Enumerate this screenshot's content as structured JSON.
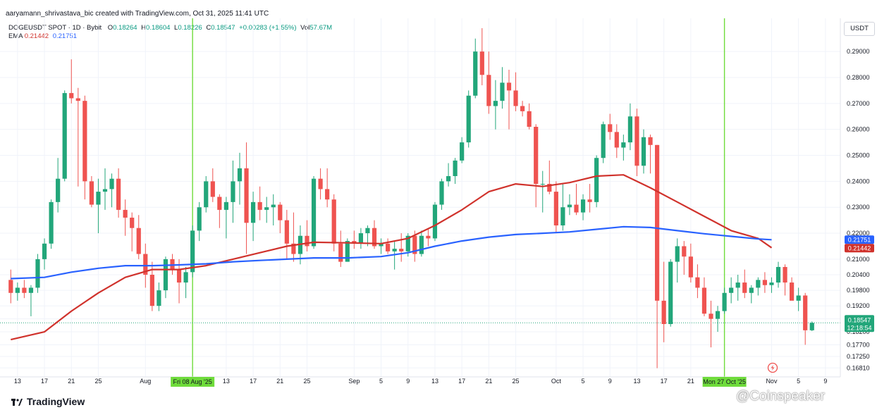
{
  "header": {
    "credit": "aaryamann_shrivastava_bic created with TradingView.com, Oct 31, 2025 11:41 UTC",
    "symbol": "DOGEUSDT SPOT · 1D · Bybit",
    "ohlc": {
      "o_label": "O",
      "o": "0.18264",
      "h_label": "H",
      "h": "0.18604",
      "l_label": "L",
      "l": "0.18226",
      "c_label": "C",
      "c": "0.18547",
      "change": "+0.00283 (+1.55%)",
      "vol_label": "Vol",
      "vol": "57.67M"
    },
    "ema_label": "EMA",
    "ema_fast": "0.21442",
    "ema_slow": "0.21751",
    "currency": "USDT"
  },
  "footer": {
    "brand": "TradingView",
    "watermark": "@Coinspeaker"
  },
  "colors": {
    "up": "#22a67a",
    "down": "#ef5350",
    "ema_red": "#d0322c",
    "ema_blue": "#2962ff",
    "marker": "#6fdc3b",
    "grid": "#f0f3fa"
  },
  "chart_data": {
    "type": "candlestick",
    "title": "DOGEUSDT SPOT · 1D · Bybit",
    "ylim": [
      0.166,
      0.299
    ],
    "y_ticks": [
      "0.29000",
      "0.28000",
      "0.27000",
      "0.26000",
      "0.25000",
      "0.24000",
      "0.23000",
      "0.22000",
      "0.21000",
      "0.20400",
      "0.19800",
      "0.19200",
      "0.18700",
      "0.18200",
      "0.17700",
      "0.17250",
      "0.16810"
    ],
    "x_labels": [
      {
        "i": 1,
        "text": "13"
      },
      {
        "i": 5,
        "text": "17"
      },
      {
        "i": 9,
        "text": "21"
      },
      {
        "i": 13,
        "text": "25"
      },
      {
        "i": 20,
        "text": "Aug"
      },
      {
        "i": 32,
        "text": "13"
      },
      {
        "i": 36,
        "text": "17"
      },
      {
        "i": 40,
        "text": "21"
      },
      {
        "i": 44,
        "text": "25"
      },
      {
        "i": 51,
        "text": "Sep"
      },
      {
        "i": 55,
        "text": "5"
      },
      {
        "i": 59,
        "text": "9"
      },
      {
        "i": 63,
        "text": "13"
      },
      {
        "i": 67,
        "text": "17"
      },
      {
        "i": 71,
        "text": "21"
      },
      {
        "i": 75,
        "text": "25"
      },
      {
        "i": 81,
        "text": "Oct"
      },
      {
        "i": 85,
        "text": "5"
      },
      {
        "i": 89,
        "text": "9"
      },
      {
        "i": 93,
        "text": "13"
      },
      {
        "i": 97,
        "text": "17"
      },
      {
        "i": 101,
        "text": "21"
      },
      {
        "i": 113,
        "text": "Nov"
      },
      {
        "i": 117,
        "text": "5"
      },
      {
        "i": 121,
        "text": "9"
      }
    ],
    "highlighted_dates": [
      {
        "i": 27,
        "text": "Fri 08 Aug '25"
      },
      {
        "i": 106,
        "text": "Mon 27 Oct '25"
      }
    ],
    "candles": [
      [
        0.202,
        0.206,
        0.193,
        0.197
      ],
      [
        0.197,
        0.201,
        0.194,
        0.199
      ],
      [
        0.199,
        0.202,
        0.195,
        0.197
      ],
      [
        0.197,
        0.2,
        0.188,
        0.199
      ],
      [
        0.199,
        0.212,
        0.197,
        0.21
      ],
      [
        0.21,
        0.218,
        0.206,
        0.216
      ],
      [
        0.216,
        0.233,
        0.214,
        0.232
      ],
      [
        0.232,
        0.249,
        0.228,
        0.241
      ],
      [
        0.241,
        0.275,
        0.24,
        0.274
      ],
      [
        0.274,
        0.287,
        0.27,
        0.272
      ],
      [
        0.272,
        0.276,
        0.238,
        0.271
      ],
      [
        0.271,
        0.273,
        0.233,
        0.24
      ],
      [
        0.24,
        0.242,
        0.23,
        0.231
      ],
      [
        0.231,
        0.241,
        0.22,
        0.236
      ],
      [
        0.236,
        0.245,
        0.229,
        0.237
      ],
      [
        0.237,
        0.243,
        0.23,
        0.241
      ],
      [
        0.241,
        0.245,
        0.226,
        0.229
      ],
      [
        0.229,
        0.233,
        0.219,
        0.226
      ],
      [
        0.226,
        0.228,
        0.213,
        0.222
      ],
      [
        0.222,
        0.227,
        0.21,
        0.212
      ],
      [
        0.212,
        0.216,
        0.199,
        0.204
      ],
      [
        0.204,
        0.209,
        0.19,
        0.192
      ],
      [
        0.192,
        0.201,
        0.19,
        0.198
      ],
      [
        0.198,
        0.211,
        0.195,
        0.21
      ],
      [
        0.21,
        0.212,
        0.204,
        0.206
      ],
      [
        0.206,
        0.21,
        0.193,
        0.201
      ],
      [
        0.201,
        0.207,
        0.195,
        0.205
      ],
      [
        0.205,
        0.223,
        0.203,
        0.221
      ],
      [
        0.221,
        0.232,
        0.217,
        0.23
      ],
      [
        0.23,
        0.242,
        0.228,
        0.24
      ],
      [
        0.24,
        0.245,
        0.232,
        0.234
      ],
      [
        0.234,
        0.235,
        0.222,
        0.229
      ],
      [
        0.229,
        0.234,
        0.218,
        0.232
      ],
      [
        0.232,
        0.248,
        0.224,
        0.24
      ],
      [
        0.24,
        0.251,
        0.231,
        0.245
      ],
      [
        0.245,
        0.255,
        0.212,
        0.224
      ],
      [
        0.224,
        0.236,
        0.217,
        0.232
      ],
      [
        0.232,
        0.238,
        0.225,
        0.229
      ],
      [
        0.229,
        0.234,
        0.224,
        0.23
      ],
      [
        0.23,
        0.235,
        0.223,
        0.231
      ],
      [
        0.231,
        0.232,
        0.22,
        0.225
      ],
      [
        0.225,
        0.229,
        0.21,
        0.216
      ],
      [
        0.216,
        0.228,
        0.209,
        0.212
      ],
      [
        0.212,
        0.223,
        0.208,
        0.219
      ],
      [
        0.219,
        0.225,
        0.213,
        0.215
      ],
      [
        0.215,
        0.242,
        0.214,
        0.241
      ],
      [
        0.241,
        0.245,
        0.233,
        0.237
      ],
      [
        0.237,
        0.245,
        0.23,
        0.233
      ],
      [
        0.233,
        0.235,
        0.213,
        0.216
      ],
      [
        0.216,
        0.221,
        0.207,
        0.209
      ],
      [
        0.209,
        0.218,
        0.209,
        0.217
      ],
      [
        0.217,
        0.221,
        0.214,
        0.216
      ],
      [
        0.216,
        0.222,
        0.214,
        0.22
      ],
      [
        0.22,
        0.223,
        0.215,
        0.222
      ],
      [
        0.222,
        0.225,
        0.214,
        0.215
      ],
      [
        0.215,
        0.218,
        0.212,
        0.216
      ],
      [
        0.216,
        0.218,
        0.212,
        0.213
      ],
      [
        0.213,
        0.217,
        0.206,
        0.214
      ],
      [
        0.214,
        0.22,
        0.209,
        0.213
      ],
      [
        0.213,
        0.22,
        0.211,
        0.219
      ],
      [
        0.219,
        0.221,
        0.209,
        0.212
      ],
      [
        0.212,
        0.221,
        0.211,
        0.219
      ],
      [
        0.219,
        0.222,
        0.215,
        0.218
      ],
      [
        0.218,
        0.232,
        0.217,
        0.231
      ],
      [
        0.231,
        0.241,
        0.229,
        0.24
      ],
      [
        0.24,
        0.247,
        0.238,
        0.242
      ],
      [
        0.242,
        0.249,
        0.239,
        0.248
      ],
      [
        0.248,
        0.257,
        0.247,
        0.255
      ],
      [
        0.255,
        0.275,
        0.253,
        0.273
      ],
      [
        0.273,
        0.295,
        0.272,
        0.29
      ],
      [
        0.29,
        0.299,
        0.277,
        0.281
      ],
      [
        0.281,
        0.29,
        0.266,
        0.269
      ],
      [
        0.269,
        0.279,
        0.26,
        0.271
      ],
      [
        0.271,
        0.284,
        0.268,
        0.278
      ],
      [
        0.278,
        0.283,
        0.26,
        0.275
      ],
      [
        0.275,
        0.282,
        0.267,
        0.269
      ],
      [
        0.269,
        0.271,
        0.265,
        0.267
      ],
      [
        0.267,
        0.27,
        0.26,
        0.261
      ],
      [
        0.261,
        0.262,
        0.23,
        0.239
      ],
      [
        0.239,
        0.244,
        0.228,
        0.239
      ],
      [
        0.239,
        0.248,
        0.235,
        0.236
      ],
      [
        0.236,
        0.24,
        0.22,
        0.223
      ],
      [
        0.223,
        0.239,
        0.221,
        0.23
      ],
      [
        0.23,
        0.235,
        0.227,
        0.231
      ],
      [
        0.231,
        0.239,
        0.227,
        0.228
      ],
      [
        0.228,
        0.235,
        0.225,
        0.233
      ],
      [
        0.233,
        0.239,
        0.228,
        0.232
      ],
      [
        0.232,
        0.25,
        0.23,
        0.249
      ],
      [
        0.249,
        0.263,
        0.247,
        0.262
      ],
      [
        0.262,
        0.266,
        0.256,
        0.259
      ],
      [
        0.259,
        0.262,
        0.249,
        0.253
      ],
      [
        0.253,
        0.258,
        0.248,
        0.255
      ],
      [
        0.255,
        0.27,
        0.252,
        0.265
      ],
      [
        0.265,
        0.268,
        0.242,
        0.246
      ],
      [
        0.246,
        0.26,
        0.243,
        0.257
      ],
      [
        0.257,
        0.258,
        0.243,
        0.254
      ],
      [
        0.254,
        0.254,
        0.168,
        0.194
      ],
      [
        0.194,
        0.209,
        0.178,
        0.185
      ],
      [
        0.185,
        0.21,
        0.184,
        0.209
      ],
      [
        0.209,
        0.218,
        0.201,
        0.215
      ],
      [
        0.215,
        0.217,
        0.204,
        0.211
      ],
      [
        0.211,
        0.216,
        0.201,
        0.203
      ],
      [
        0.203,
        0.208,
        0.195,
        0.199
      ],
      [
        0.199,
        0.203,
        0.188,
        0.189
      ],
      [
        0.189,
        0.194,
        0.176,
        0.187
      ],
      [
        0.187,
        0.192,
        0.182,
        0.19
      ],
      [
        0.19,
        0.199,
        0.189,
        0.197
      ],
      [
        0.197,
        0.203,
        0.193,
        0.199
      ],
      [
        0.199,
        0.204,
        0.194,
        0.201
      ],
      [
        0.201,
        0.206,
        0.195,
        0.197
      ],
      [
        0.197,
        0.2,
        0.193,
        0.199
      ],
      [
        0.199,
        0.203,
        0.196,
        0.202
      ],
      [
        0.202,
        0.205,
        0.197,
        0.2
      ],
      [
        0.2,
        0.203,
        0.197,
        0.201
      ],
      [
        0.201,
        0.209,
        0.199,
        0.207
      ],
      [
        0.207,
        0.208,
        0.196,
        0.201
      ],
      [
        0.201,
        0.203,
        0.195,
        0.194
      ],
      [
        0.194,
        0.199,
        0.19,
        0.196
      ],
      [
        0.196,
        0.197,
        0.177,
        0.1826
      ],
      [
        0.1826,
        0.186,
        0.1823,
        0.18547
      ]
    ],
    "series": [
      {
        "name": "EMA 0.21442",
        "color": "#d0322c",
        "points": [
          [
            0,
            0.179
          ],
          [
            5,
            0.182
          ],
          [
            9,
            0.19
          ],
          [
            13,
            0.197
          ],
          [
            17,
            0.203
          ],
          [
            21,
            0.206
          ],
          [
            25,
            0.206
          ],
          [
            29,
            0.2075
          ],
          [
            33,
            0.21
          ],
          [
            37,
            0.2125
          ],
          [
            41,
            0.215
          ],
          [
            45,
            0.2165
          ],
          [
            50,
            0.2163
          ],
          [
            55,
            0.216
          ],
          [
            59,
            0.218
          ],
          [
            63,
            0.223
          ],
          [
            67,
            0.229
          ],
          [
            71,
            0.236
          ],
          [
            75,
            0.239
          ],
          [
            79,
            0.238
          ],
          [
            83,
            0.2395
          ],
          [
            87,
            0.242
          ],
          [
            91,
            0.2425
          ],
          [
            95,
            0.2375
          ],
          [
            99,
            0.232
          ],
          [
            103,
            0.2265
          ],
          [
            107,
            0.221
          ],
          [
            111,
            0.218
          ],
          [
            113,
            0.2144
          ]
        ]
      },
      {
        "name": "EMA 0.21751",
        "color": "#2962ff",
        "points": [
          [
            0,
            0.2025
          ],
          [
            5,
            0.203
          ],
          [
            9,
            0.205
          ],
          [
            13,
            0.2065
          ],
          [
            17,
            0.2075
          ],
          [
            21,
            0.2075
          ],
          [
            25,
            0.2078
          ],
          [
            29,
            0.2082
          ],
          [
            33,
            0.209
          ],
          [
            37,
            0.2095
          ],
          [
            41,
            0.21
          ],
          [
            45,
            0.2105
          ],
          [
            50,
            0.2105
          ],
          [
            55,
            0.211
          ],
          [
            59,
            0.2125
          ],
          [
            63,
            0.215
          ],
          [
            67,
            0.217
          ],
          [
            71,
            0.2185
          ],
          [
            75,
            0.2195
          ],
          [
            79,
            0.22
          ],
          [
            83,
            0.2205
          ],
          [
            87,
            0.2215
          ],
          [
            91,
            0.2225
          ],
          [
            95,
            0.2222
          ],
          [
            99,
            0.221
          ],
          [
            103,
            0.2198
          ],
          [
            107,
            0.2188
          ],
          [
            111,
            0.2178
          ],
          [
            113,
            0.2175
          ]
        ]
      }
    ],
    "last_price": {
      "value": "0.18547",
      "countdown": "12:18:54"
    },
    "ema_badges": [
      {
        "value": "0.21751",
        "color": "#2962ff"
      },
      {
        "value": "0.21442",
        "color": "#d0322c"
      }
    ]
  }
}
